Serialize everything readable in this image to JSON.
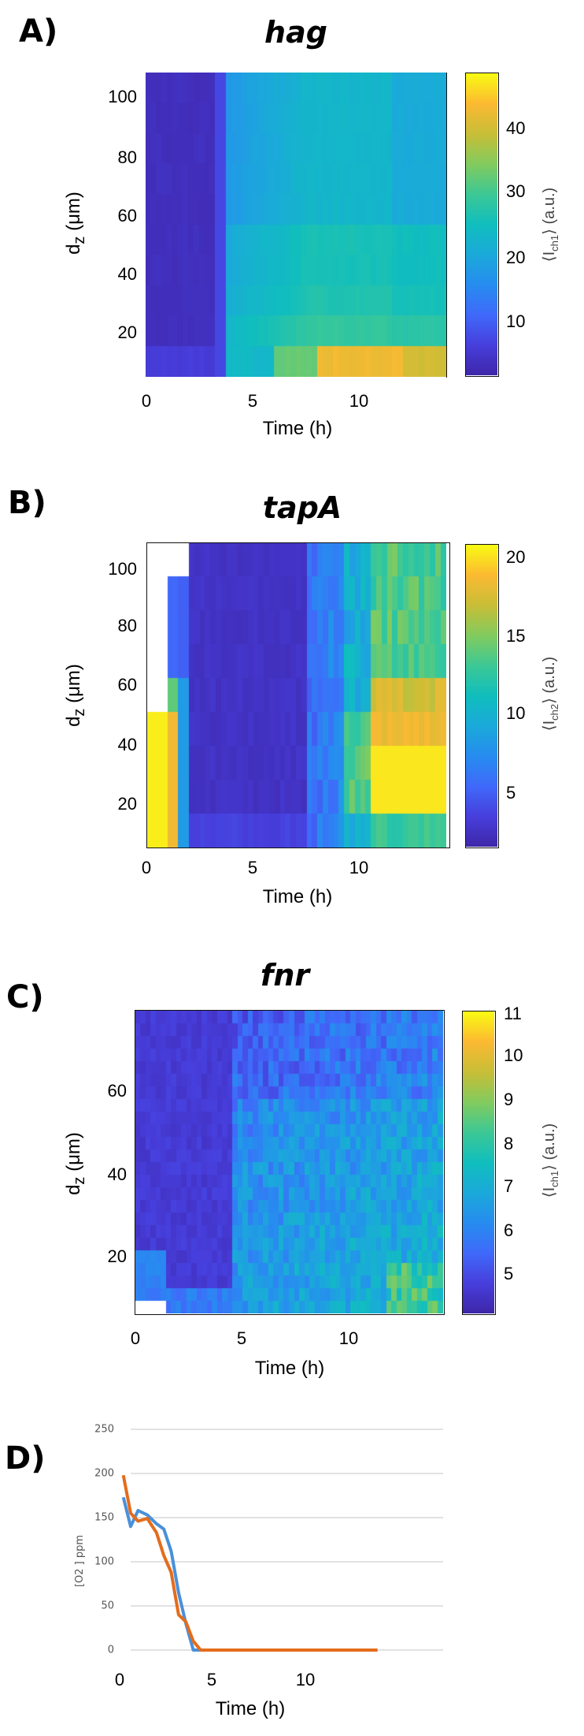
{
  "figure": {
    "panels": [
      {
        "letter": "A)",
        "title": "hag",
        "xlabel": "Time (h)",
        "ylabel_main": "d",
        "ylabel_sub": "z",
        "ylabel_unit": " (μm)",
        "cb_label_pre": "⟨I",
        "cb_label_sub": "ch1",
        "cb_label_post": "⟩ (a.u.)",
        "xticks": [
          "0",
          "5",
          "10"
        ],
        "yticks": [
          "100",
          "80",
          "60",
          "40",
          "20"
        ],
        "cbticks": [
          "40",
          "30",
          "20",
          "10"
        ]
      },
      {
        "letter": "B)",
        "title": "tapA",
        "xlabel": "Time (h)",
        "ylabel_main": "d",
        "ylabel_sub": "z",
        "ylabel_unit": " (μm)",
        "cb_label_pre": "⟨I",
        "cb_label_sub": "ch2",
        "cb_label_post": "⟩ (a.u.)",
        "xticks": [
          "0",
          "5",
          "10"
        ],
        "yticks": [
          "100",
          "80",
          "60",
          "40",
          "20"
        ],
        "cbticks": [
          "20",
          "15",
          "10",
          "5"
        ]
      },
      {
        "letter": "C)",
        "title": "fnr",
        "xlabel": "Time (h)",
        "ylabel_main": "d",
        "ylabel_sub": "z",
        "ylabel_unit": " (μm)",
        "cb_label_pre": "⟨I",
        "cb_label_sub": "ch1",
        "cb_label_post": "⟩ (a.u.)",
        "xticks": [
          "0",
          "5",
          "10"
        ],
        "yticks": [
          "60",
          "40",
          "20"
        ],
        "cbticks": [
          "11",
          "10",
          "9",
          "8",
          "7",
          "6",
          "5"
        ]
      },
      {
        "letter": "D)",
        "xlabel": "Time (h)",
        "ylabel": "[O2 ] ppm",
        "xticks": [
          "0",
          "5",
          "10"
        ],
        "yticks": [
          "250",
          "200",
          "150",
          "100",
          "50",
          "0"
        ]
      }
    ]
  },
  "colors": {
    "series_blue": "#4a90d9",
    "series_orange": "#e46c1c",
    "gridline": "#d9d9d9"
  },
  "chart_data": [
    {
      "type": "heatmap",
      "title": "hag",
      "xlabel": "Time (h)",
      "ylabel": "d_z (μm)",
      "colorbar_label": "⟨I_ch1⟩ (a.u.)",
      "xlim": [
        0,
        14
      ],
      "ylim": [
        5,
        108
      ],
      "xticks": [
        0,
        5,
        10
      ],
      "yticks": [
        20,
        40,
        60,
        80,
        100
      ],
      "clim": [
        2,
        48
      ],
      "colorbar_ticks": [
        10,
        20,
        30,
        40
      ],
      "colormap": "parula",
      "description": "Low (~3) for t<3.7h at all depths; after ~3.7h rises to ~17-22 across depths, highest near bottom (d_z<15 μm) reaching ~40 between 8-12h."
    },
    {
      "type": "heatmap",
      "title": "tapA",
      "xlabel": "Time (h)",
      "ylabel": "d_z (μm)",
      "colorbar_label": "⟨I_ch2⟩ (a.u.)",
      "xlim": [
        0,
        14
      ],
      "ylim": [
        5,
        108
      ],
      "xticks": [
        0,
        5,
        10
      ],
      "yticks": [
        20,
        40,
        60,
        80,
        100
      ],
      "clim": [
        1.5,
        21
      ],
      "colorbar_ticks": [
        5,
        10,
        15,
        20
      ],
      "colormap": "parula",
      "description": "High (~20) at early times near bottom (t<1.5h, d_z<45), very low (~2) from 2-7.5h, increasing after 8h to ~20 at 10.5-14h for d_z 15-45 μm."
    },
    {
      "type": "heatmap",
      "title": "fnr",
      "xlabel": "Time (h)",
      "ylabel": "d_z (μm)",
      "colorbar_label": "⟨I_ch1⟩ (a.u.)",
      "xlim": [
        0,
        14
      ],
      "ylim": [
        5,
        78
      ],
      "xticks": [
        0,
        5,
        10
      ],
      "yticks": [
        20,
        40,
        60
      ],
      "clim": [
        4.2,
        11
      ],
      "colorbar_ticks": [
        5,
        6,
        7,
        8,
        9,
        10,
        11
      ],
      "colormap": "parula",
      "description": "Low (~4.5) before ~4.5h, increasing to ~6-7 after 5h, up to ~8.5 near bottom at ~13h."
    },
    {
      "type": "line",
      "title": "",
      "xlabel": "Time (h)",
      "ylabel": "[O2 ] ppm",
      "xlim": [
        0,
        14
      ],
      "ylim": [
        0,
        250
      ],
      "xticks": [
        0,
        5,
        10
      ],
      "yticks": [
        0,
        50,
        100,
        150,
        200,
        250
      ],
      "grid": true,
      "legend": "none",
      "series": [
        {
          "name": "blue",
          "x": [
            0.2,
            0.6,
            1.0,
            1.5,
            2.0,
            2.4,
            2.8,
            3.2,
            3.6,
            4.0,
            4.3,
            5,
            6,
            8,
            10,
            12,
            14
          ],
          "values": [
            173,
            140,
            158,
            153,
            143,
            137,
            112,
            65,
            30,
            0,
            0,
            0,
            0,
            0,
            0,
            0,
            0
          ]
        },
        {
          "name": "orange",
          "x": [
            0.2,
            0.6,
            1.0,
            1.5,
            2.0,
            2.4,
            2.8,
            3.2,
            3.6,
            4.0,
            4.4,
            5,
            6,
            8,
            10,
            12,
            14
          ],
          "values": [
            198,
            155,
            146,
            149,
            133,
            107,
            88,
            40,
            32,
            10,
            0,
            0,
            0,
            0,
            0,
            0,
            0
          ]
        }
      ]
    }
  ]
}
